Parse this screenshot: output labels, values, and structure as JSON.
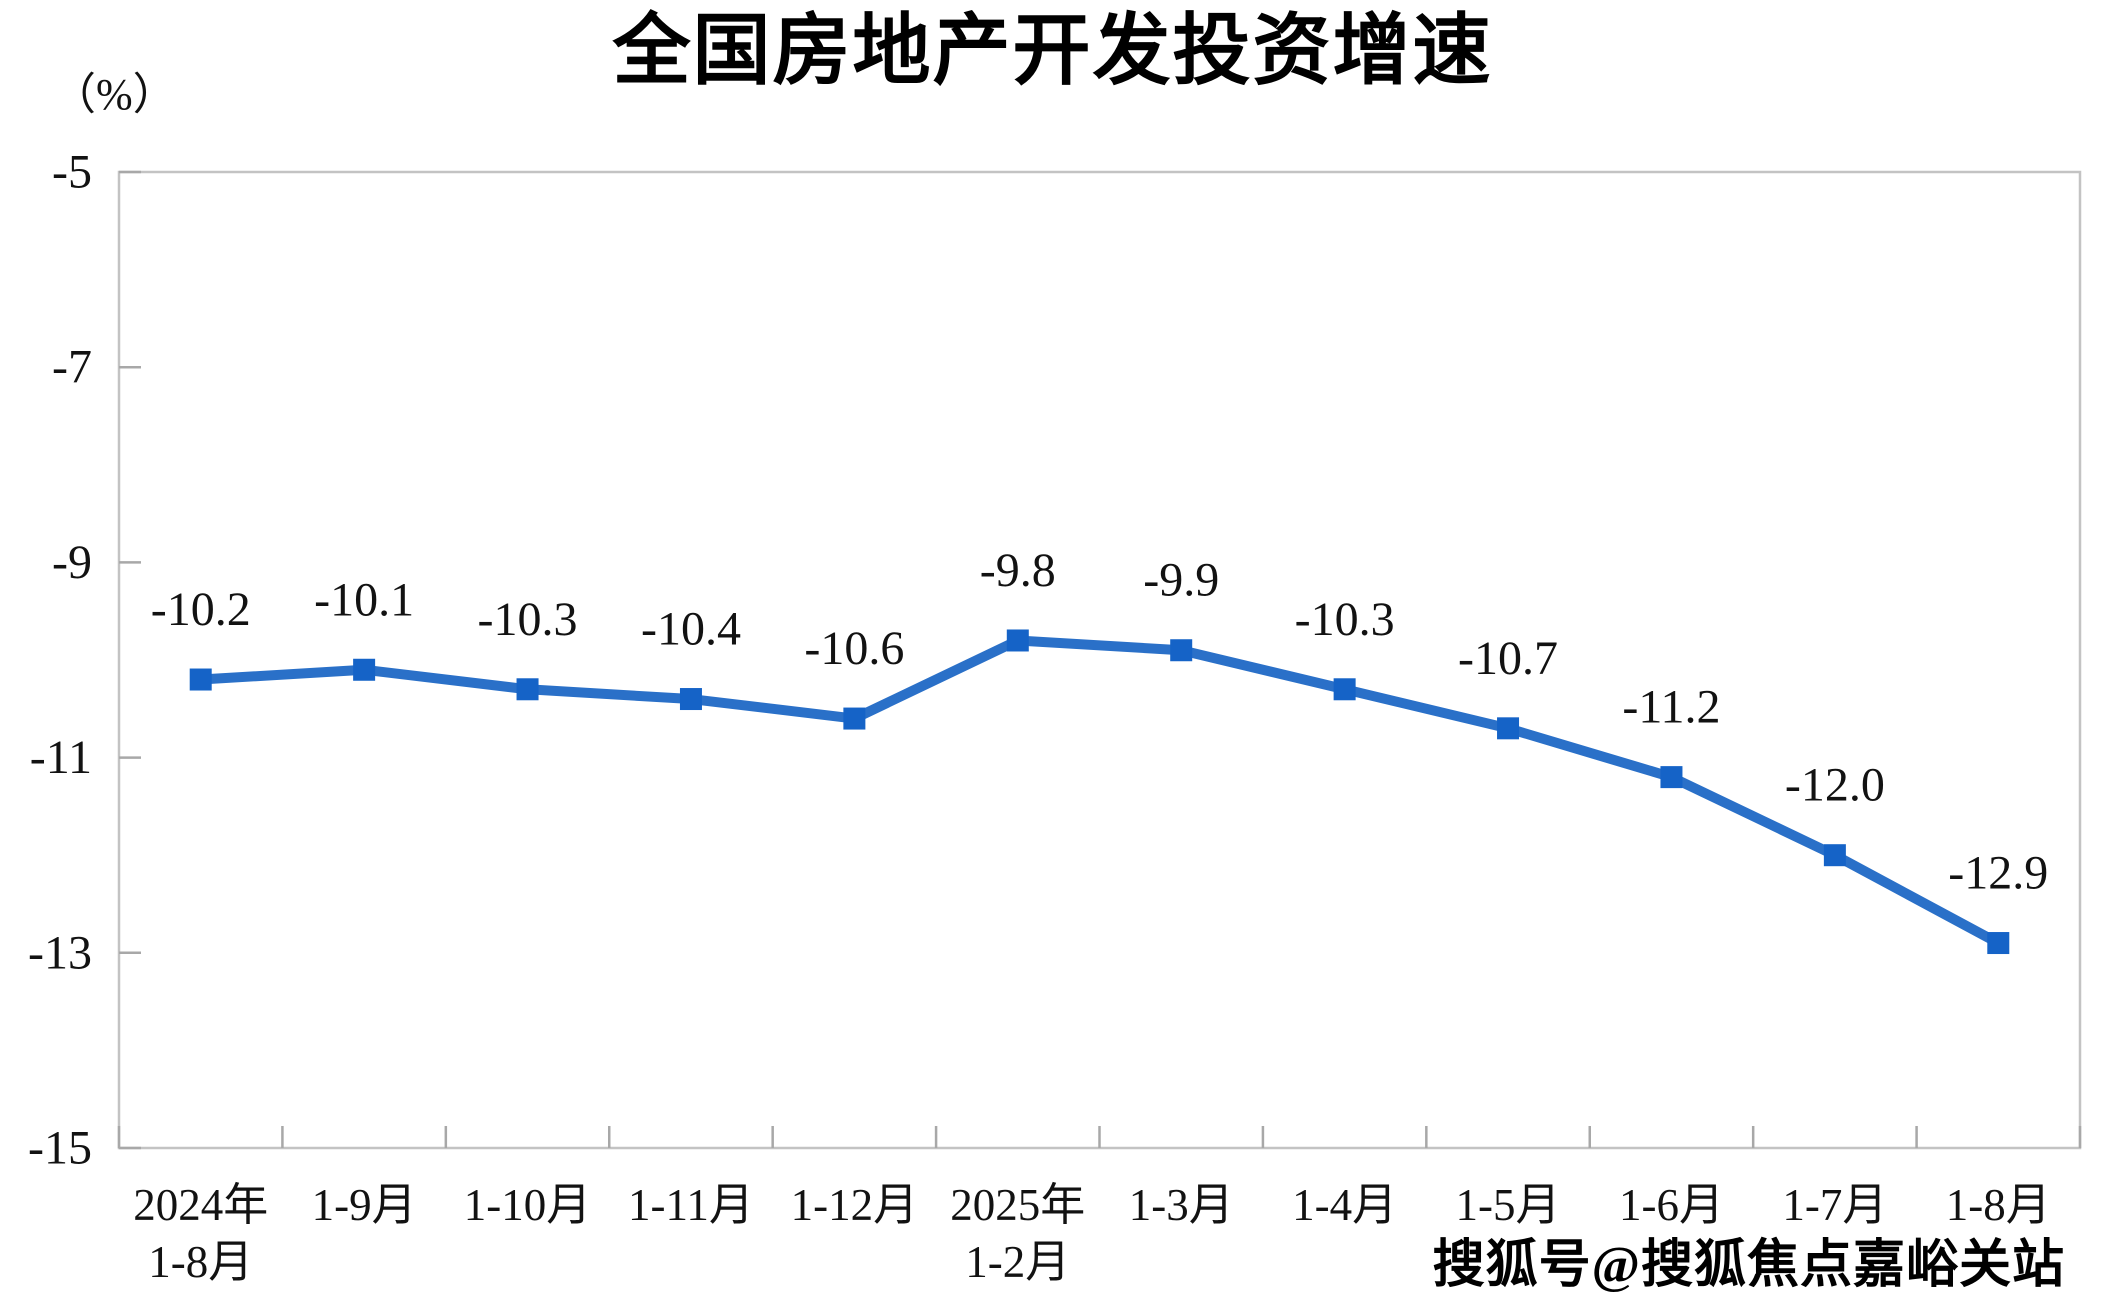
{
  "chart_data": {
    "type": "line",
    "title": "全国房地产开发投资增速",
    "unit_label": "（%）",
    "categories": [
      [
        "2024年",
        "1-8月"
      ],
      [
        "1-9月"
      ],
      [
        "1-10月"
      ],
      [
        "1-11月"
      ],
      [
        "1-12月"
      ],
      [
        "2025年",
        "1-2月"
      ],
      [
        "1-3月"
      ],
      [
        "1-4月"
      ],
      [
        "1-5月"
      ],
      [
        "1-6月"
      ],
      [
        "1-7月"
      ],
      [
        "1-8月"
      ]
    ],
    "values": [
      -10.2,
      -10.1,
      -10.3,
      -10.4,
      -10.6,
      -9.8,
      -9.9,
      -10.3,
      -10.7,
      -11.2,
      -12.0,
      -12.9
    ],
    "labels": [
      "-10.2",
      "-10.1",
      "-10.3",
      "-10.4",
      "-10.6",
      "-9.8",
      "-9.9",
      "-10.3",
      "-10.7",
      "-11.2",
      "-12.0",
      "-12.9"
    ],
    "ylim": [
      -15,
      -5
    ],
    "yticks": [
      -5,
      -7,
      -9,
      -11,
      -13,
      -15
    ],
    "grid": false,
    "legend": "none",
    "marker_shape": "square",
    "colors": {
      "line": "#2A70C8",
      "marker": "#1563C7",
      "axis": "#C3C3C3",
      "tick": "#A8A8A8",
      "text": "#121212",
      "title": "#000000"
    }
  },
  "watermark": {
    "text": "搜狐号@搜狐焦点嘉峪关站"
  }
}
